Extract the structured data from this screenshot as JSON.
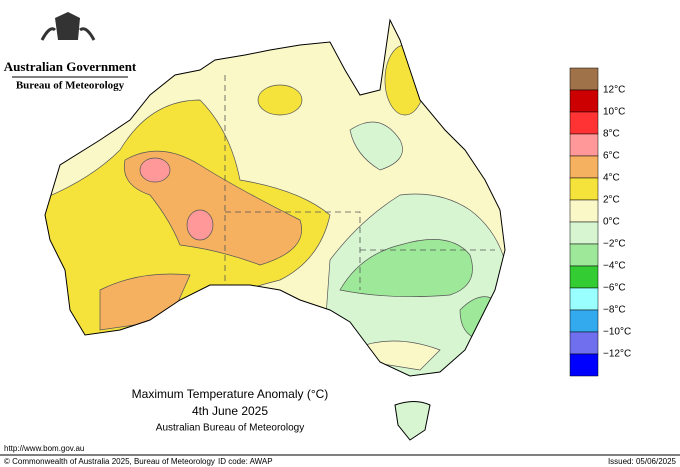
{
  "header": {
    "government": "Australian Government",
    "agency": "Bureau of Meteorology"
  },
  "map": {
    "title": "Maximum Temperature Anomaly (°C)",
    "date": "4th June 2025",
    "source": "Australian Bureau of Meteorology"
  },
  "legend": {
    "colors": [
      "#a0724a",
      "#cc0000",
      "#ff3333",
      "#ff9999",
      "#f5b060",
      "#f5e33c",
      "#fbf8c8",
      "#d6f5d0",
      "#9ee89a",
      "#33cc33",
      "#99ffff",
      "#33aaee",
      "#7070ee",
      "#0000ff"
    ],
    "labels": [
      "12°C",
      "10°C",
      "8°C",
      "6°C",
      "4°C",
      "2°C",
      "0°C",
      "−2°C",
      "−4°C",
      "−6°C",
      "−8°C",
      "−10°C",
      "−12°C"
    ]
  },
  "footer": {
    "url": "http://www.bom.gov.au",
    "copyright": "© Commonwealth of Australia 2025, Bureau of Meteorology",
    "id_code": "ID code: AWAP",
    "issued": "Issued: 05/06/2025"
  }
}
